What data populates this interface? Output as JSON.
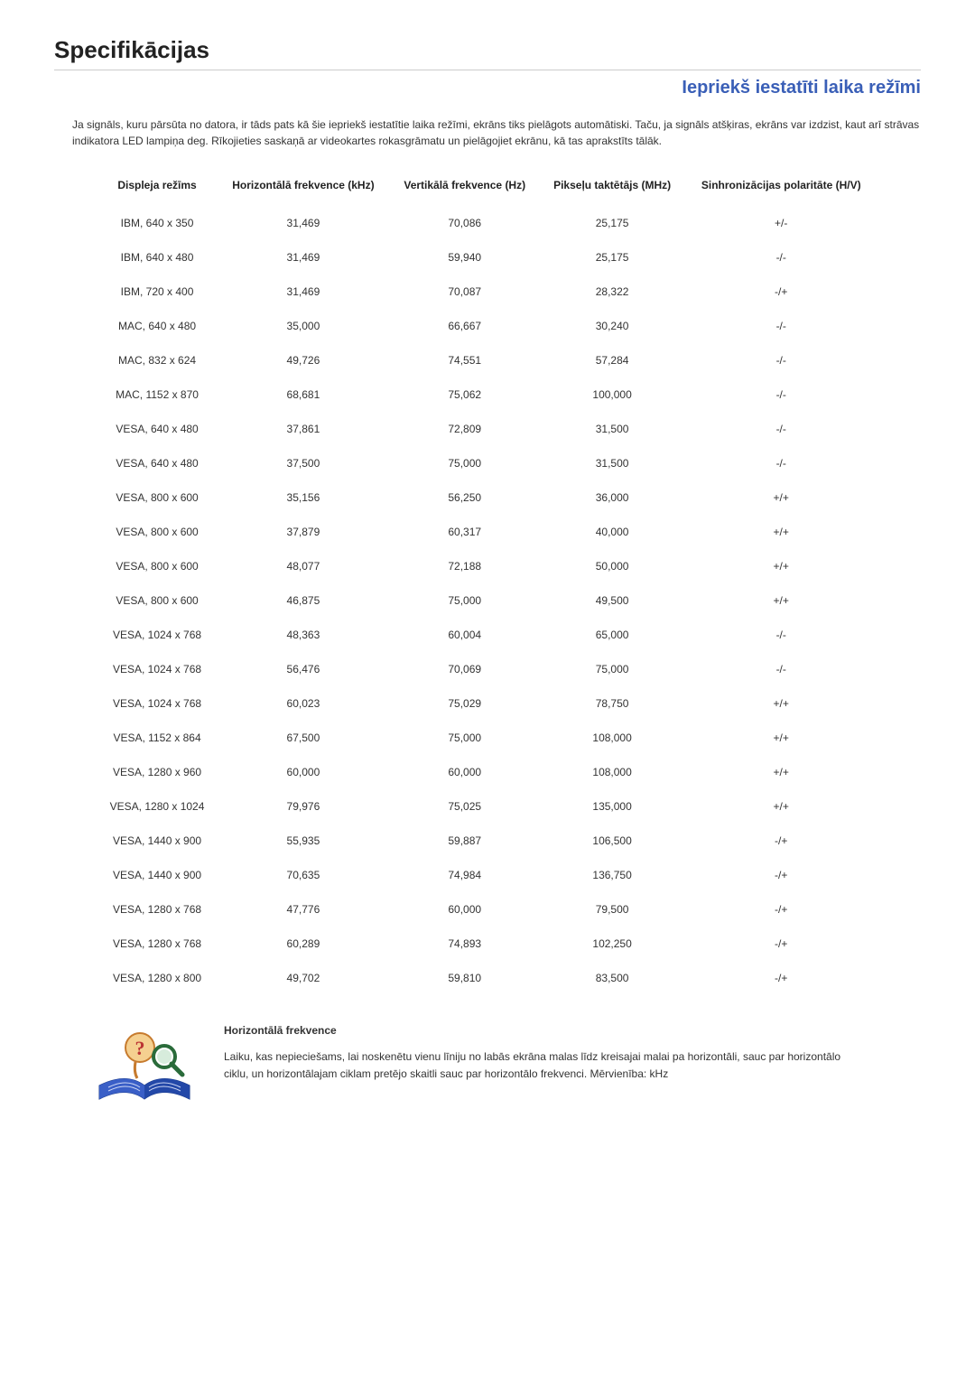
{
  "page_title": "Specifikācijas",
  "section_title": "Iepriekš iestatīti laika režīmi",
  "intro_text": "Ja signāls, kuru pārsūta no datora, ir tāds pats kā šie iepriekš iestatītie laika režīmi, ekrāns tiks pielāgots automātiski. Taču, ja signāls atšķiras, ekrāns var izdzist, kaut arī strāvas indikatora LED lampiņa deg. Rīkojieties saskaņā ar videokartes rokasgrāmatu un pielāgojiet ekrānu, kā tas aprakstīts tālāk.",
  "table": {
    "columns": [
      "Displeja režīms",
      "Horizontālā frekvence (kHz)",
      "Vertikālā frekvence (Hz)",
      "Pikseļu taktētājs (MHz)",
      "Sinhronizācijas polaritāte (H/V)"
    ],
    "rows": [
      [
        "IBM, 640 x 350",
        "31,469",
        "70,086",
        "25,175",
        "+/-"
      ],
      [
        "IBM, 640 x 480",
        "31,469",
        "59,940",
        "25,175",
        "-/-"
      ],
      [
        "IBM, 720 x 400",
        "31,469",
        "70,087",
        "28,322",
        "-/+"
      ],
      [
        "MAC, 640 x 480",
        "35,000",
        "66,667",
        "30,240",
        "-/-"
      ],
      [
        "MAC, 832 x 624",
        "49,726",
        "74,551",
        "57,284",
        "-/-"
      ],
      [
        "MAC, 1152 x 870",
        "68,681",
        "75,062",
        "100,000",
        "-/-"
      ],
      [
        "VESA, 640 x 480",
        "37,861",
        "72,809",
        "31,500",
        "-/-"
      ],
      [
        "VESA, 640 x 480",
        "37,500",
        "75,000",
        "31,500",
        "-/-"
      ],
      [
        "VESA, 800 x 600",
        "35,156",
        "56,250",
        "36,000",
        "+/+"
      ],
      [
        "VESA, 800 x 600",
        "37,879",
        "60,317",
        "40,000",
        "+/+"
      ],
      [
        "VESA, 800 x 600",
        "48,077",
        "72,188",
        "50,000",
        "+/+"
      ],
      [
        "VESA, 800 x 600",
        "46,875",
        "75,000",
        "49,500",
        "+/+"
      ],
      [
        "VESA, 1024 x 768",
        "48,363",
        "60,004",
        "65,000",
        "-/-"
      ],
      [
        "VESA, 1024 x 768",
        "56,476",
        "70,069",
        "75,000",
        "-/-"
      ],
      [
        "VESA, 1024 x 768",
        "60,023",
        "75,029",
        "78,750",
        "+/+"
      ],
      [
        "VESA, 1152 x 864",
        "67,500",
        "75,000",
        "108,000",
        "+/+"
      ],
      [
        "VESA, 1280 x 960",
        "60,000",
        "60,000",
        "108,000",
        "+/+"
      ],
      [
        "VESA, 1280 x 1024",
        "79,976",
        "75,025",
        "135,000",
        "+/+"
      ],
      [
        "VESA, 1440 x 900",
        "55,935",
        "59,887",
        "106,500",
        "-/+"
      ],
      [
        "VESA, 1440 x 900",
        "70,635",
        "74,984",
        "136,750",
        "-/+"
      ],
      [
        "VESA, 1280 x 768",
        "47,776",
        "60,000",
        "79,500",
        "-/+"
      ],
      [
        "VESA, 1280 x 768",
        "60,289",
        "74,893",
        "102,250",
        "-/+"
      ],
      [
        "VESA, 1280 x 800",
        "49,702",
        "59,810",
        "83,500",
        "-/+"
      ]
    ]
  },
  "footer": {
    "title": "Horizontālā frekvence",
    "body": "Laiku, kas nepieciešams, lai noskenētu vienu līniju no labās ekrāna malas līdz kreisajai malai pa horizontāli, sauc par horizontālo ciklu, un horizontālajam ciklam pretējo skaitli sauc par horizontālo frekvenci. Mērvienība: kHz"
  },
  "styling": {
    "heading_color": "#3a5fb7",
    "text_color": "#333333",
    "border_color": "#cccccc",
    "font_family": "Verdana, Arial, sans-serif"
  }
}
